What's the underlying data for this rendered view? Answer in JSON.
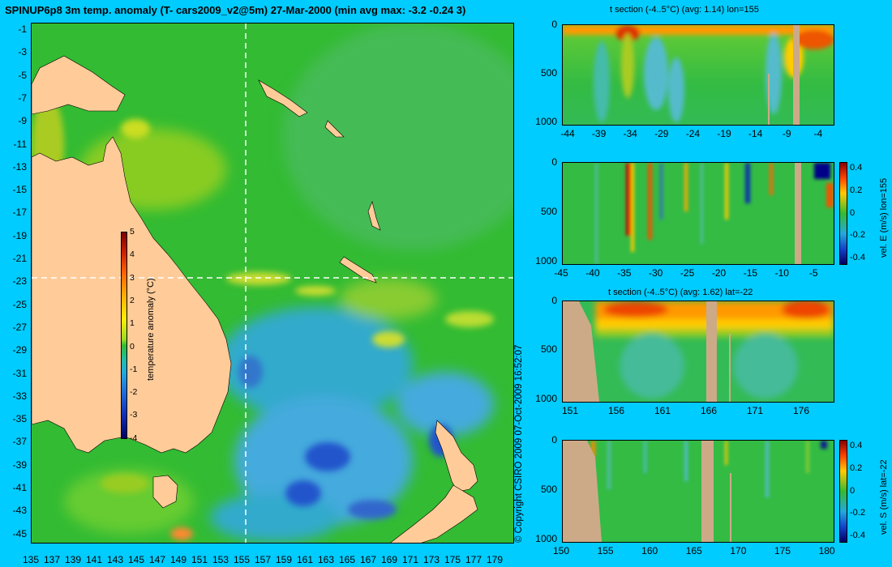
{
  "main_title": "SPINUP6p8 3m temp. anomaly (T- cars2009_v2@5m) 27-Mar-2000 (min avg max: -3.2 -0.24 3)",
  "map": {
    "lat_labels": [
      "-1",
      "-3",
      "-5",
      "-7",
      "-9",
      "-11",
      "-13",
      "-15",
      "-17",
      "-19",
      "-21",
      "-23",
      "-25",
      "-27",
      "-29",
      "-31",
      "-33",
      "-35",
      "-37",
      "-39",
      "-41",
      "-43",
      "-45"
    ],
    "lon_labels": [
      "135",
      "137",
      "139",
      "141",
      "143",
      "145",
      "147",
      "149",
      "151",
      "153",
      "155",
      "157",
      "159",
      "161",
      "163",
      "165",
      "167",
      "169",
      "171",
      "173",
      "175",
      "177",
      "179"
    ],
    "colorbar_ticks": [
      "5",
      "4",
      "3",
      "2",
      "1",
      "0",
      "-1",
      "-2",
      "-3",
      "-4"
    ],
    "colorbar_label": "temperature anomaly (°C)",
    "copyright": "© Copyright CSIRO 2009   07-Oct-2009 16:52:07",
    "colors": {
      "ocean_base": "#33bb33",
      "land": "#ffcc99",
      "crosshair": "#ffffff"
    }
  },
  "panels": [
    {
      "title": "t section (-4..5°C) (avg: 1.14) lon=155",
      "x_ticks": [
        "-44",
        "-39",
        "-34",
        "-29",
        "-24",
        "-19",
        "-14",
        "-9",
        "-4"
      ],
      "y_ticks": [
        "0",
        "500",
        "1000"
      ],
      "colorbar": null
    },
    {
      "title": "",
      "x_ticks": [
        "-45",
        "-40",
        "-35",
        "-30",
        "-25",
        "-20",
        "-15",
        "-10",
        "-5"
      ],
      "y_ticks": [
        "0",
        "500",
        "1000"
      ],
      "colorbar": {
        "ticks": [
          "0.4",
          "0.2",
          "0",
          "-0.2",
          "-0.4"
        ],
        "label": "vel. E (m/s) lon=155"
      }
    },
    {
      "title": "t section (-4..5°C) (avg: 1.62) lat=-22",
      "x_ticks": [
        "151",
        "156",
        "161",
        "166",
        "171",
        "176"
      ],
      "y_ticks": [
        "0",
        "500",
        "1000"
      ],
      "colorbar": null
    },
    {
      "title": "",
      "x_ticks": [
        "150",
        "155",
        "160",
        "165",
        "170",
        "175",
        "180"
      ],
      "y_ticks": [
        "0",
        "500",
        "1000"
      ],
      "colorbar": {
        "ticks": [
          "0.4",
          "0.2",
          "0",
          "-0.2",
          "-0.4"
        ],
        "label": "vel. S (m/s) lat=-22"
      }
    }
  ]
}
